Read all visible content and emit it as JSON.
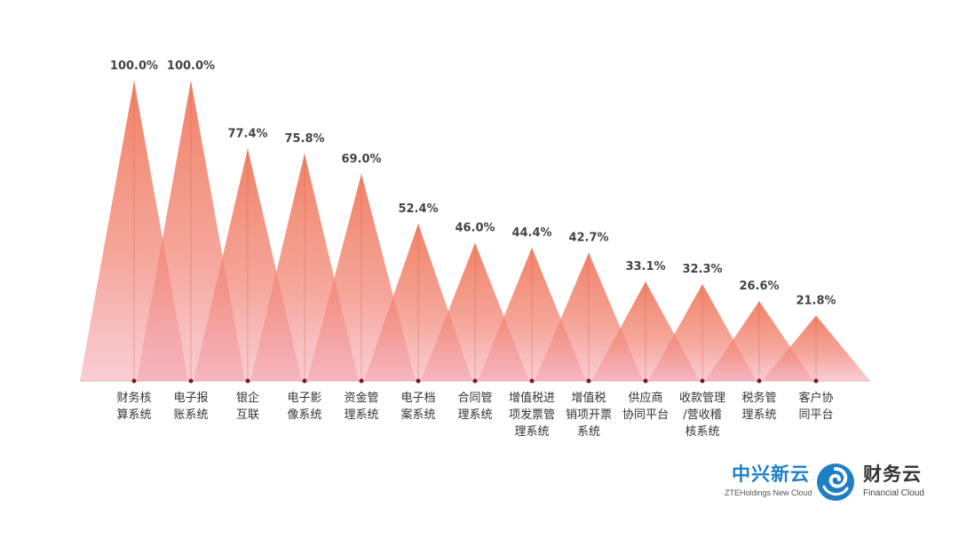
{
  "chart_data": {
    "type": "bar",
    "categories": [
      [
        "财务核",
        "算系统"
      ],
      [
        "电子报",
        "账系统"
      ],
      [
        "银企",
        "互联"
      ],
      [
        "电子影",
        "像系统"
      ],
      [
        "资金管",
        "理系统"
      ],
      [
        "电子档",
        "案系统"
      ],
      [
        "合同管",
        "理系统"
      ],
      [
        "增值税进",
        "项发票管",
        "理系统"
      ],
      [
        "增值税",
        "销项开票",
        "系统"
      ],
      [
        "供应商",
        "协同平台"
      ],
      [
        "收款管理",
        "/营收稽",
        "核系统"
      ],
      [
        "税务管",
        "理系统"
      ],
      [
        "客户协",
        "同平台"
      ]
    ],
    "values": [
      100.0,
      100.0,
      77.4,
      75.8,
      69.0,
      52.4,
      46.0,
      44.4,
      42.7,
      33.1,
      32.3,
      26.6,
      21.8
    ],
    "value_labels": [
      "100.0%",
      "100.0%",
      "77.4%",
      "75.8%",
      "69.0%",
      "52.4%",
      "46.0%",
      "44.4%",
      "42.7%",
      "33.1%",
      "32.3%",
      "26.6%",
      "21.8%"
    ],
    "ylim": [
      0,
      100
    ],
    "mark_style": "triangle",
    "colors": {
      "peak": "#f07a5e",
      "base": "#f4a3a8",
      "axis": "#e7b0b0",
      "tick": "#7a1a1a"
    }
  },
  "logos": {
    "left_big": "中兴新云",
    "left_small": "ZTEHoldings New Cloud",
    "right_big": "财务云",
    "right_small": "Financial Cloud",
    "left_color": "#1f7fc4"
  }
}
